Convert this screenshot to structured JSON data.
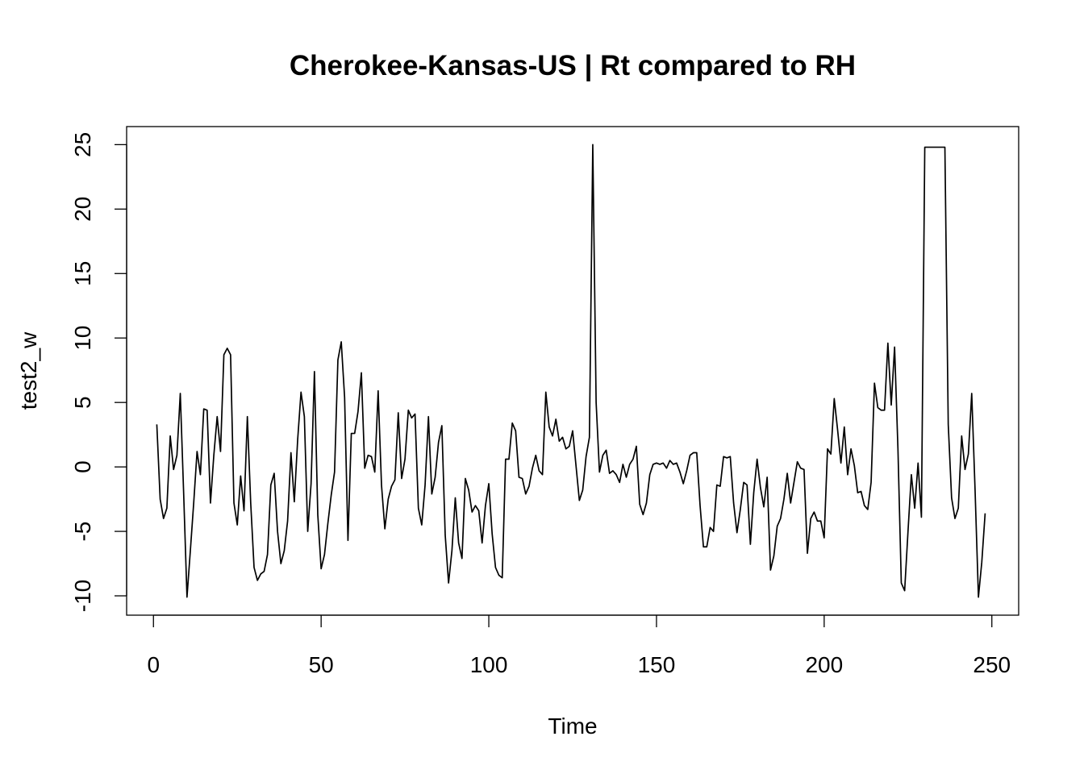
{
  "chart_data": {
    "type": "line",
    "title": "Cherokee-Kansas-US | Rt compared to RH",
    "xlabel": "Time",
    "ylabel": "test2_w",
    "xlim": [
      -8,
      258
    ],
    "ylim": [
      -11.5,
      26.4
    ],
    "x_ticks": [
      0,
      50,
      100,
      150,
      200,
      250
    ],
    "x_tick_labels": [
      "0",
      "50",
      "100",
      "150",
      "200",
      "250"
    ],
    "y_ticks": [
      -10,
      -5,
      0,
      5,
      10,
      15,
      20,
      25
    ],
    "y_tick_labels": [
      "-10",
      "-5",
      "0",
      "5",
      "10",
      "15",
      "20",
      "25"
    ],
    "grid": false,
    "series": [
      {
        "color": "#000000",
        "x_start": 1,
        "values": [
          3.3,
          -2.5,
          -4.0,
          -3.2,
          2.4,
          -0.2,
          0.9,
          5.7,
          -2.0,
          -10.1,
          -6.5,
          -2.8,
          1.2,
          -0.6,
          4.5,
          4.4,
          -2.8,
          0.9,
          3.9,
          1.2,
          8.7,
          9.2,
          8.7,
          -2.8,
          -4.5,
          -0.7,
          -3.4,
          3.9,
          -2.8,
          -7.8,
          -8.8,
          -8.3,
          -8.1,
          -6.8,
          -1.4,
          -0.5,
          -5.0,
          -7.5,
          -6.5,
          -4.2,
          1.1,
          -2.7,
          2.1,
          5.8,
          3.9,
          -5.0,
          -1.3,
          7.4,
          -3.7,
          -7.9,
          -6.8,
          -4.4,
          -2.2,
          -0.4,
          8.3,
          9.7,
          5.4,
          -5.7,
          2.6,
          2.6,
          4.3,
          7.3,
          -0.1,
          0.9,
          0.8,
          -0.4,
          5.9,
          -1.4,
          -4.8,
          -2.5,
          -1.5,
          -1.0,
          4.2,
          -0.9,
          0.6,
          4.4,
          3.8,
          4.1,
          -3.2,
          -4.5,
          -1.4,
          3.9,
          -2.1,
          -0.8,
          1.9,
          3.2,
          -5.3,
          -9.0,
          -6.5,
          -2.4,
          -5.9,
          -7.1,
          -0.9,
          -1.8,
          -3.5,
          -3.0,
          -3.4,
          -5.9,
          -3.0,
          -1.3,
          -5.2,
          -7.8,
          -8.4,
          -8.6,
          0.6,
          0.6,
          3.4,
          2.8,
          -0.8,
          -0.9,
          -2.1,
          -1.5,
          -0.1,
          0.9,
          -0.3,
          -0.6,
          5.8,
          3.1,
          2.4,
          3.7,
          2.0,
          2.3,
          1.4,
          1.6,
          2.8,
          0.1,
          -2.6,
          -1.8,
          0.8,
          2.3,
          25.0,
          5.0,
          -0.4,
          0.9,
          1.3,
          -0.5,
          -0.3,
          -0.6,
          -1.2,
          0.2,
          -0.8,
          0.2,
          0.6,
          1.6,
          -2.9,
          -3.7,
          -2.8,
          -0.6,
          0.2,
          0.3,
          0.2,
          0.3,
          -0.1,
          0.5,
          0.2,
          0.3,
          -0.4,
          -1.3,
          -0.3,
          0.9,
          1.1,
          1.1,
          -3.0,
          -6.2,
          -6.2,
          -4.7,
          -5.0,
          -1.4,
          -1.5,
          0.8,
          0.7,
          0.8,
          -2.8,
          -5.1,
          -3.3,
          -1.2,
          -1.4,
          -6.0,
          -2.0,
          0.6,
          -1.6,
          -3.1,
          -0.8,
          -8.0,
          -6.9,
          -4.6,
          -4.0,
          -2.5,
          -0.5,
          -2.8,
          -1.2,
          0.4,
          -0.1,
          -0.2,
          -6.7,
          -4.0,
          -3.5,
          -4.2,
          -4.2,
          -5.5,
          1.4,
          1.0,
          5.3,
          2.9,
          0.3,
          3.1,
          -0.6,
          1.4,
          0.1,
          -2.0,
          -1.9,
          -3.0,
          -3.3,
          -1.2,
          6.5,
          4.6,
          4.4,
          4.4,
          9.6,
          4.8,
          9.3,
          1.4,
          -9.0,
          -9.6,
          -5.0,
          -0.6,
          -3.2,
          0.3,
          -3.9,
          24.8,
          24.8,
          24.8,
          24.8,
          24.8,
          24.8,
          24.8,
          3.3,
          -2.4,
          -4.0,
          -3.2,
          2.4,
          -0.2,
          1.0,
          5.7,
          -1.8,
          -10.1,
          -7.4,
          -3.6
        ]
      }
    ]
  }
}
